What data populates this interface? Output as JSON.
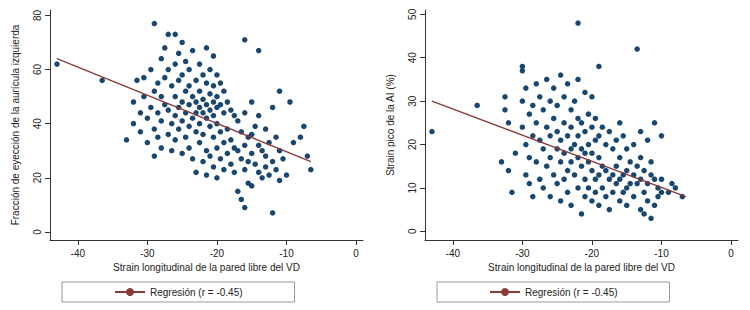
{
  "chart_data": [
    {
      "type": "scatter",
      "x_label": "Strain longitudinal de la pared libre del VD",
      "y_label": "Fracción de eyección de la aurícula izquierda",
      "xlim": [
        -44,
        1
      ],
      "xticks": [
        -40,
        -30,
        -20,
        -10,
        0
      ],
      "ylim": [
        -3,
        82
      ],
      "yticks": [
        0,
        20,
        40,
        60,
        80
      ],
      "grid": false,
      "legend": "bottom",
      "series": [
        {
          "type": "scatter",
          "color": "#1a476f",
          "marker": "circle",
          "x": [
            -43,
            -36.5,
            -33,
            -32,
            -32,
            -31.5,
            -31,
            -31,
            -30.5,
            -30.5,
            -30,
            -30,
            -29.5,
            -29.5,
            -29,
            -29,
            -29,
            -29,
            -28.5,
            -28.5,
            -28.5,
            -28,
            -28,
            -28,
            -28,
            -27.5,
            -27.5,
            -27.5,
            -27,
            -27,
            -27,
            -27,
            -26.5,
            -26.5,
            -26.5,
            -26,
            -26,
            -26,
            -26,
            -26,
            -25.5,
            -25.5,
            -25.5,
            -25.5,
            -25,
            -25,
            -25,
            -25,
            -25,
            -24.5,
            -24.5,
            -24.5,
            -24.5,
            -24,
            -24,
            -24,
            -24,
            -24,
            -23.5,
            -23.5,
            -23.5,
            -23.5,
            -23,
            -23,
            -23,
            -23,
            -23,
            -22.5,
            -22.5,
            -22.5,
            -22.5,
            -22.5,
            -22,
            -22,
            -22,
            -22,
            -22,
            -21.5,
            -21.5,
            -21.5,
            -21.5,
            -21.5,
            -21.5,
            -21,
            -21,
            -21,
            -21,
            -21,
            -20.5,
            -20.5,
            -20.5,
            -20.5,
            -20.5,
            -20.5,
            -20,
            -20,
            -20,
            -20,
            -20,
            -20,
            -19.5,
            -19.5,
            -19.5,
            -19.5,
            -19,
            -19,
            -19,
            -19,
            -18.5,
            -18.5,
            -18.5,
            -18,
            -18,
            -18,
            -17.5,
            -17.5,
            -17.5,
            -17,
            -17,
            -17,
            -16.5,
            -16.5,
            -16.5,
            -16,
            -16,
            -16,
            -16,
            -16,
            -15.5,
            -15.5,
            -15.5,
            -15,
            -15,
            -15,
            -15,
            -14.5,
            -14.5,
            -14,
            -14,
            -14,
            -14,
            -13.5,
            -13.5,
            -13,
            -13,
            -13,
            -12.5,
            -12.5,
            -12,
            -12,
            -12,
            -11.5,
            -11.5,
            -11,
            -11,
            -11,
            -10.5,
            -10,
            -9.5,
            -9,
            -8,
            -7.5,
            -7,
            -6.5
          ],
          "values": [
            62,
            56,
            34,
            48,
            40,
            56,
            44,
            37,
            57,
            50,
            42,
            33,
            60,
            46,
            77,
            52,
            38,
            28,
            55,
            44,
            35,
            64,
            50,
            41,
            31,
            68,
            57,
            47,
            73,
            60,
            45,
            36,
            54,
            40,
            30,
            73,
            62,
            50,
            43,
            34,
            66,
            56,
            46,
            38,
            70,
            58,
            48,
            41,
            29,
            63,
            52,
            44,
            35,
            60,
            54,
            47,
            39,
            31,
            67,
            50,
            42,
            27,
            56,
            48,
            44,
            37,
            22,
            62,
            52,
            46,
            40,
            33,
            58,
            49,
            44,
            36,
            26,
            68,
            55,
            47,
            42,
            30,
            21,
            60,
            51,
            45,
            39,
            28,
            65,
            54,
            48,
            43,
            35,
            24,
            58,
            50,
            46,
            40,
            31,
            20,
            55,
            47,
            37,
            27,
            52,
            44,
            33,
            23,
            48,
            38,
            29,
            45,
            34,
            25,
            43,
            31,
            22,
            41,
            30,
            15,
            37,
            27,
            12,
            71,
            44,
            32,
            23,
            9,
            35,
            26,
            18,
            48,
            36,
            29,
            17,
            39,
            25,
            67,
            43,
            32,
            22,
            30,
            20,
            38,
            28,
            24,
            33,
            21,
            46,
            26,
            7,
            35,
            23,
            52,
            30,
            19,
            27,
            21,
            48,
            33,
            35,
            39,
            28,
            23
          ]
        },
        {
          "name": "Regresión (r = -0.45)",
          "type": "line",
          "color": "#8b3a3a",
          "x": [
            -43,
            -6.5
          ],
          "values": [
            64,
            26
          ]
        }
      ]
    },
    {
      "type": "scatter",
      "x_label": "Strain longitudinal de la pared libre del VD",
      "y_label": "Strain pico de la AI (%)",
      "xlim": [
        -44,
        1
      ],
      "xticks": [
        -40,
        -30,
        -20,
        -10,
        0
      ],
      "ylim": [
        -2,
        51
      ],
      "yticks": [
        0,
        10,
        20,
        30,
        40,
        50
      ],
      "grid": false,
      "legend": "bottom",
      "series": [
        {
          "type": "scatter",
          "color": "#1a476f",
          "marker": "circle",
          "x": [
            -43,
            -36.5,
            -33,
            -32.5,
            -32.5,
            -32,
            -32,
            -31.5,
            -31,
            -30,
            -30,
            -30,
            -30,
            -29.5,
            -29.5,
            -29.5,
            -29,
            -29,
            -29,
            -28.5,
            -28.5,
            -28.5,
            -28,
            -28,
            -28,
            -27.5,
            -27.5,
            -27.5,
            -27,
            -27,
            -27,
            -26.5,
            -26.5,
            -26.5,
            -26,
            -26,
            -26,
            -26,
            -25.5,
            -25.5,
            -25.5,
            -25,
            -25,
            -25,
            -25,
            -24.5,
            -24.5,
            -24.5,
            -24.5,
            -24,
            -24,
            -24,
            -24,
            -23.5,
            -23.5,
            -23.5,
            -23.5,
            -23,
            -23,
            -23,
            -23,
            -23,
            -22.5,
            -22.5,
            -22.5,
            -22,
            -22,
            -22,
            -22,
            -22,
            -22,
            -21.5,
            -21.5,
            -21.5,
            -21.5,
            -21,
            -21,
            -21,
            -21,
            -21,
            -20.5,
            -20.5,
            -20.5,
            -20.5,
            -20,
            -20,
            -20,
            -20,
            -20,
            -19.5,
            -19.5,
            -19.5,
            -19.5,
            -19,
            -19,
            -19,
            -19,
            -19,
            -18.5,
            -18.5,
            -18.5,
            -18,
            -18,
            -18,
            -17.5,
            -17.5,
            -17.5,
            -17,
            -17,
            -17,
            -16.5,
            -16.5,
            -16.5,
            -16,
            -16,
            -16,
            -16,
            -15.5,
            -15.5,
            -15.5,
            -15,
            -15,
            -15,
            -15,
            -14.5,
            -14.5,
            -14,
            -14,
            -14,
            -13.5,
            -13.5,
            -13.5,
            -13,
            -13,
            -13,
            -13,
            -12.5,
            -12.5,
            -12.5,
            -12,
            -12,
            -12,
            -11.5,
            -11.5,
            -11.5,
            -11,
            -11,
            -11,
            -10.5,
            -10.5,
            -10,
            -10,
            -10,
            -9,
            -8.5,
            -8,
            -7
          ],
          "values": [
            23,
            29,
            16,
            28,
            31,
            25,
            14,
            9,
            18,
            37,
            38,
            30,
            24,
            33,
            20,
            13,
            27,
            17,
            11,
            29,
            22,
            8,
            34,
            25,
            16,
            31,
            21,
            12,
            28,
            19,
            10,
            35,
            24,
            15,
            30,
            22,
            17,
            8,
            33,
            26,
            13,
            29,
            23,
            19,
            11,
            36,
            21,
            16,
            7,
            31,
            25,
            18,
            12,
            34,
            22,
            14,
            9,
            28,
            24,
            19,
            16,
            6,
            30,
            20,
            13,
            48,
            35,
            26,
            22,
            17,
            10,
            25,
            19,
            15,
            4,
            32,
            23,
            18,
            12,
            8,
            27,
            20,
            16,
            10,
            31,
            24,
            18,
            14,
            7,
            26,
            21,
            12,
            9,
            38,
            22,
            17,
            13,
            6,
            24,
            15,
            10,
            20,
            14,
            8,
            23,
            12,
            5,
            19,
            13,
            9,
            21,
            15,
            11,
            25,
            17,
            12,
            7,
            22,
            13,
            9,
            19,
            14,
            10,
            6,
            16,
            11,
            20,
            13,
            8,
            42,
            15,
            11,
            23,
            17,
            12,
            5,
            14,
            9,
            4,
            21,
            11,
            7,
            16,
            13,
            3,
            25,
            12,
            6,
            10,
            8,
            22,
            12,
            9,
            9,
            11,
            10,
            8
          ]
        },
        {
          "name": "Regresión (r = -0.45)",
          "type": "line",
          "color": "#8b3a3a",
          "x": [
            -43,
            -6.5
          ],
          "values": [
            30,
            8
          ]
        }
      ]
    }
  ]
}
